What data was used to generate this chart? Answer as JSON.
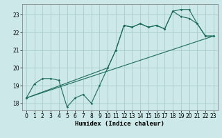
{
  "bg_color": "#cce8e8",
  "grid_color": "#aacccc",
  "line_color": "#1a6b5a",
  "xlabel": "Humidex (Indice chaleur)",
  "xlim": [
    -0.5,
    23.5
  ],
  "ylim": [
    17.6,
    23.6
  ],
  "yticks": [
    18,
    19,
    20,
    21,
    22,
    23
  ],
  "xticks": [
    0,
    1,
    2,
    3,
    4,
    5,
    6,
    7,
    8,
    9,
    10,
    11,
    12,
    13,
    14,
    15,
    16,
    17,
    18,
    19,
    20,
    21,
    22,
    23
  ],
  "line1_x": [
    0,
    1,
    2,
    3,
    4,
    5,
    6,
    7,
    8,
    9,
    10,
    11,
    12,
    13,
    14,
    15,
    16,
    17,
    18,
    19,
    20,
    21,
    22,
    23
  ],
  "line1_y": [
    18.3,
    19.1,
    19.4,
    19.4,
    19.3,
    17.8,
    18.3,
    18.5,
    18.0,
    19.0,
    20.0,
    21.0,
    22.4,
    22.3,
    22.5,
    22.3,
    22.4,
    22.2,
    23.2,
    22.9,
    22.8,
    22.5,
    21.8,
    21.8
  ],
  "line2_x": [
    0,
    10,
    11,
    12,
    13,
    14,
    15,
    16,
    17,
    18,
    19,
    20,
    21,
    22,
    23
  ],
  "line2_y": [
    18.3,
    20.0,
    21.0,
    22.4,
    22.3,
    22.5,
    22.3,
    22.4,
    22.2,
    23.2,
    23.3,
    23.3,
    22.5,
    21.8,
    21.8
  ],
  "line3_x": [
    0,
    23
  ],
  "line3_y": [
    18.3,
    21.8
  ],
  "tick_fontsize": 5.5,
  "xlabel_fontsize": 6.5
}
